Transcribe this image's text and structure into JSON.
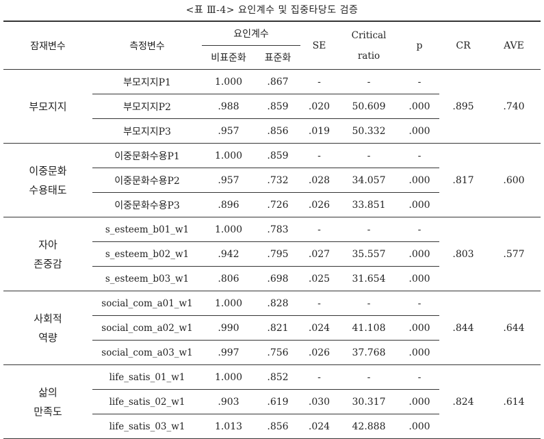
{
  "caption": "<표 Ⅲ-4> 요인계수 및 집중타당도 검증",
  "headers": {
    "latent": "잠재변수",
    "indicator": "측정변수",
    "loading": "요인계수",
    "unstd": "비표준화",
    "std": "표준화",
    "se": "SE",
    "critical_1": "Critical",
    "critical_2": "ratio",
    "p": "p",
    "cr": "CR",
    "ave": "AVE"
  },
  "groups": [
    {
      "latent_lines": [
        "부모지지"
      ],
      "cr": ".895",
      "ave": ".740",
      "rows": [
        {
          "indicator": "부모지지P1",
          "unstd": "1.000",
          "std": ".867",
          "se": "-",
          "crit": "-",
          "p": "-"
        },
        {
          "indicator": "부모지지P2",
          "unstd": ".988",
          "std": ".859",
          "se": ".020",
          "crit": "50.609",
          "p": ".000"
        },
        {
          "indicator": "부모지지P3",
          "unstd": ".957",
          "std": ".856",
          "se": ".019",
          "crit": "50.332",
          "p": ".000"
        }
      ]
    },
    {
      "latent_lines": [
        "이중문화",
        "수용태도"
      ],
      "cr": ".817",
      "ave": ".600",
      "rows": [
        {
          "indicator": "이중문화수용P1",
          "unstd": "1.000",
          "std": ".859",
          "se": "-",
          "crit": "-",
          "p": "-"
        },
        {
          "indicator": "이중문화수용P2",
          "unstd": ".957",
          "std": ".732",
          "se": ".028",
          "crit": "34.057",
          "p": ".000"
        },
        {
          "indicator": "이중문화수용P3",
          "unstd": ".896",
          "std": ".726",
          "se": ".026",
          "crit": "33.851",
          "p": ".000"
        }
      ]
    },
    {
      "latent_lines": [
        "자아",
        "존중감"
      ],
      "cr": ".803",
      "ave": ".577",
      "rows": [
        {
          "indicator": "s_esteem_b01_w1",
          "unstd": "1.000",
          "std": ".783",
          "se": "-",
          "crit": "-",
          "p": "-"
        },
        {
          "indicator": "s_esteem_b02_w1",
          "unstd": ".942",
          "std": ".795",
          "se": ".027",
          "crit": "35.557",
          "p": ".000"
        },
        {
          "indicator": "s_esteem_b03_w1",
          "unstd": ".806",
          "std": ".698",
          "se": ".025",
          "crit": "31.654",
          "p": ".000"
        }
      ]
    },
    {
      "latent_lines": [
        "사회적",
        "역량"
      ],
      "cr": ".844",
      "ave": ".644",
      "rows": [
        {
          "indicator": "social_com_a01_w1",
          "unstd": "1.000",
          "std": ".828",
          "se": "-",
          "crit": "-",
          "p": "-"
        },
        {
          "indicator": "social_com_a02_w1",
          "unstd": ".990",
          "std": ".821",
          "se": ".024",
          "crit": "41.108",
          "p": ".000"
        },
        {
          "indicator": "social_com_a03_w1",
          "unstd": ".997",
          "std": ".756",
          "se": ".026",
          "crit": "37.768",
          "p": ".000"
        }
      ]
    },
    {
      "latent_lines": [
        "삶의",
        "만족도"
      ],
      "cr": ".824",
      "ave": ".614",
      "rows": [
        {
          "indicator": "life_satis_01_w1",
          "unstd": "1.000",
          "std": ".852",
          "se": "-",
          "crit": "-",
          "p": "-"
        },
        {
          "indicator": "life_satis_02_w1",
          "unstd": ".903",
          "std": ".619",
          "se": ".030",
          "crit": "30.317",
          "p": ".000"
        },
        {
          "indicator": "life_satis_03_w1",
          "unstd": "1.013",
          "std": ".856",
          "se": ".024",
          "crit": "42.888",
          "p": ".000"
        }
      ]
    }
  ]
}
